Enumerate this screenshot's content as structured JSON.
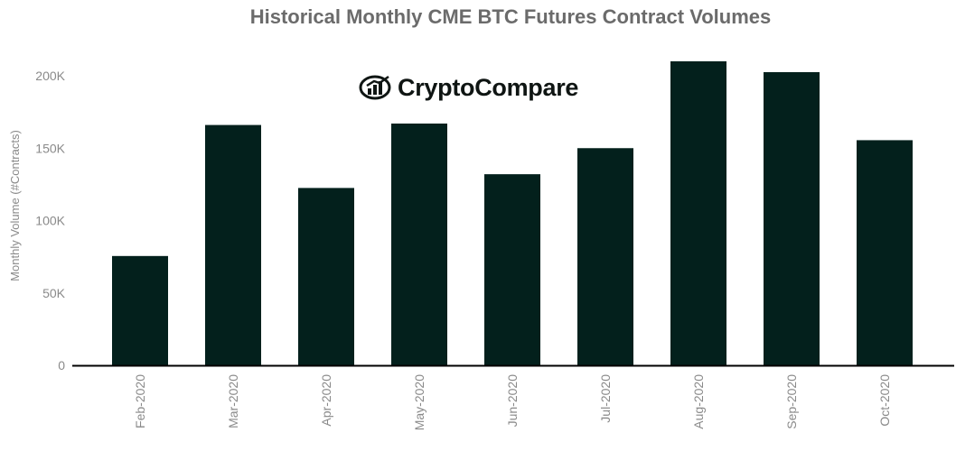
{
  "logo": {
    "text_left": "Crypto",
    "text_right": "Compare",
    "icon": "cryptocompare-logo-icon"
  },
  "chart_data": {
    "type": "bar",
    "title": "Historical Monthly CME BTC Futures Contract Volumes",
    "xlabel": "",
    "ylabel": "Monthly Volume (#Contracts)",
    "categories": [
      "Feb-2020",
      "Mar-2020",
      "Apr-2020",
      "May-2020",
      "Jun-2020",
      "Jul-2020",
      "Aug-2020",
      "Sep-2020",
      "Oct-2020"
    ],
    "values": [
      75500,
      166000,
      122500,
      167000,
      132000,
      150000,
      210000,
      202500,
      155500
    ],
    "ylim": [
      0,
      200000
    ],
    "yticks": [
      0,
      50000,
      100000,
      150000,
      200000
    ],
    "ytick_labels": [
      "0",
      "50K",
      "100K",
      "150K",
      "200K"
    ],
    "grid": false,
    "colors": {
      "bar": "#03201c",
      "axis": "#000000",
      "tick_text": "#8a8a8a",
      "title": "#6b6b6b"
    }
  }
}
